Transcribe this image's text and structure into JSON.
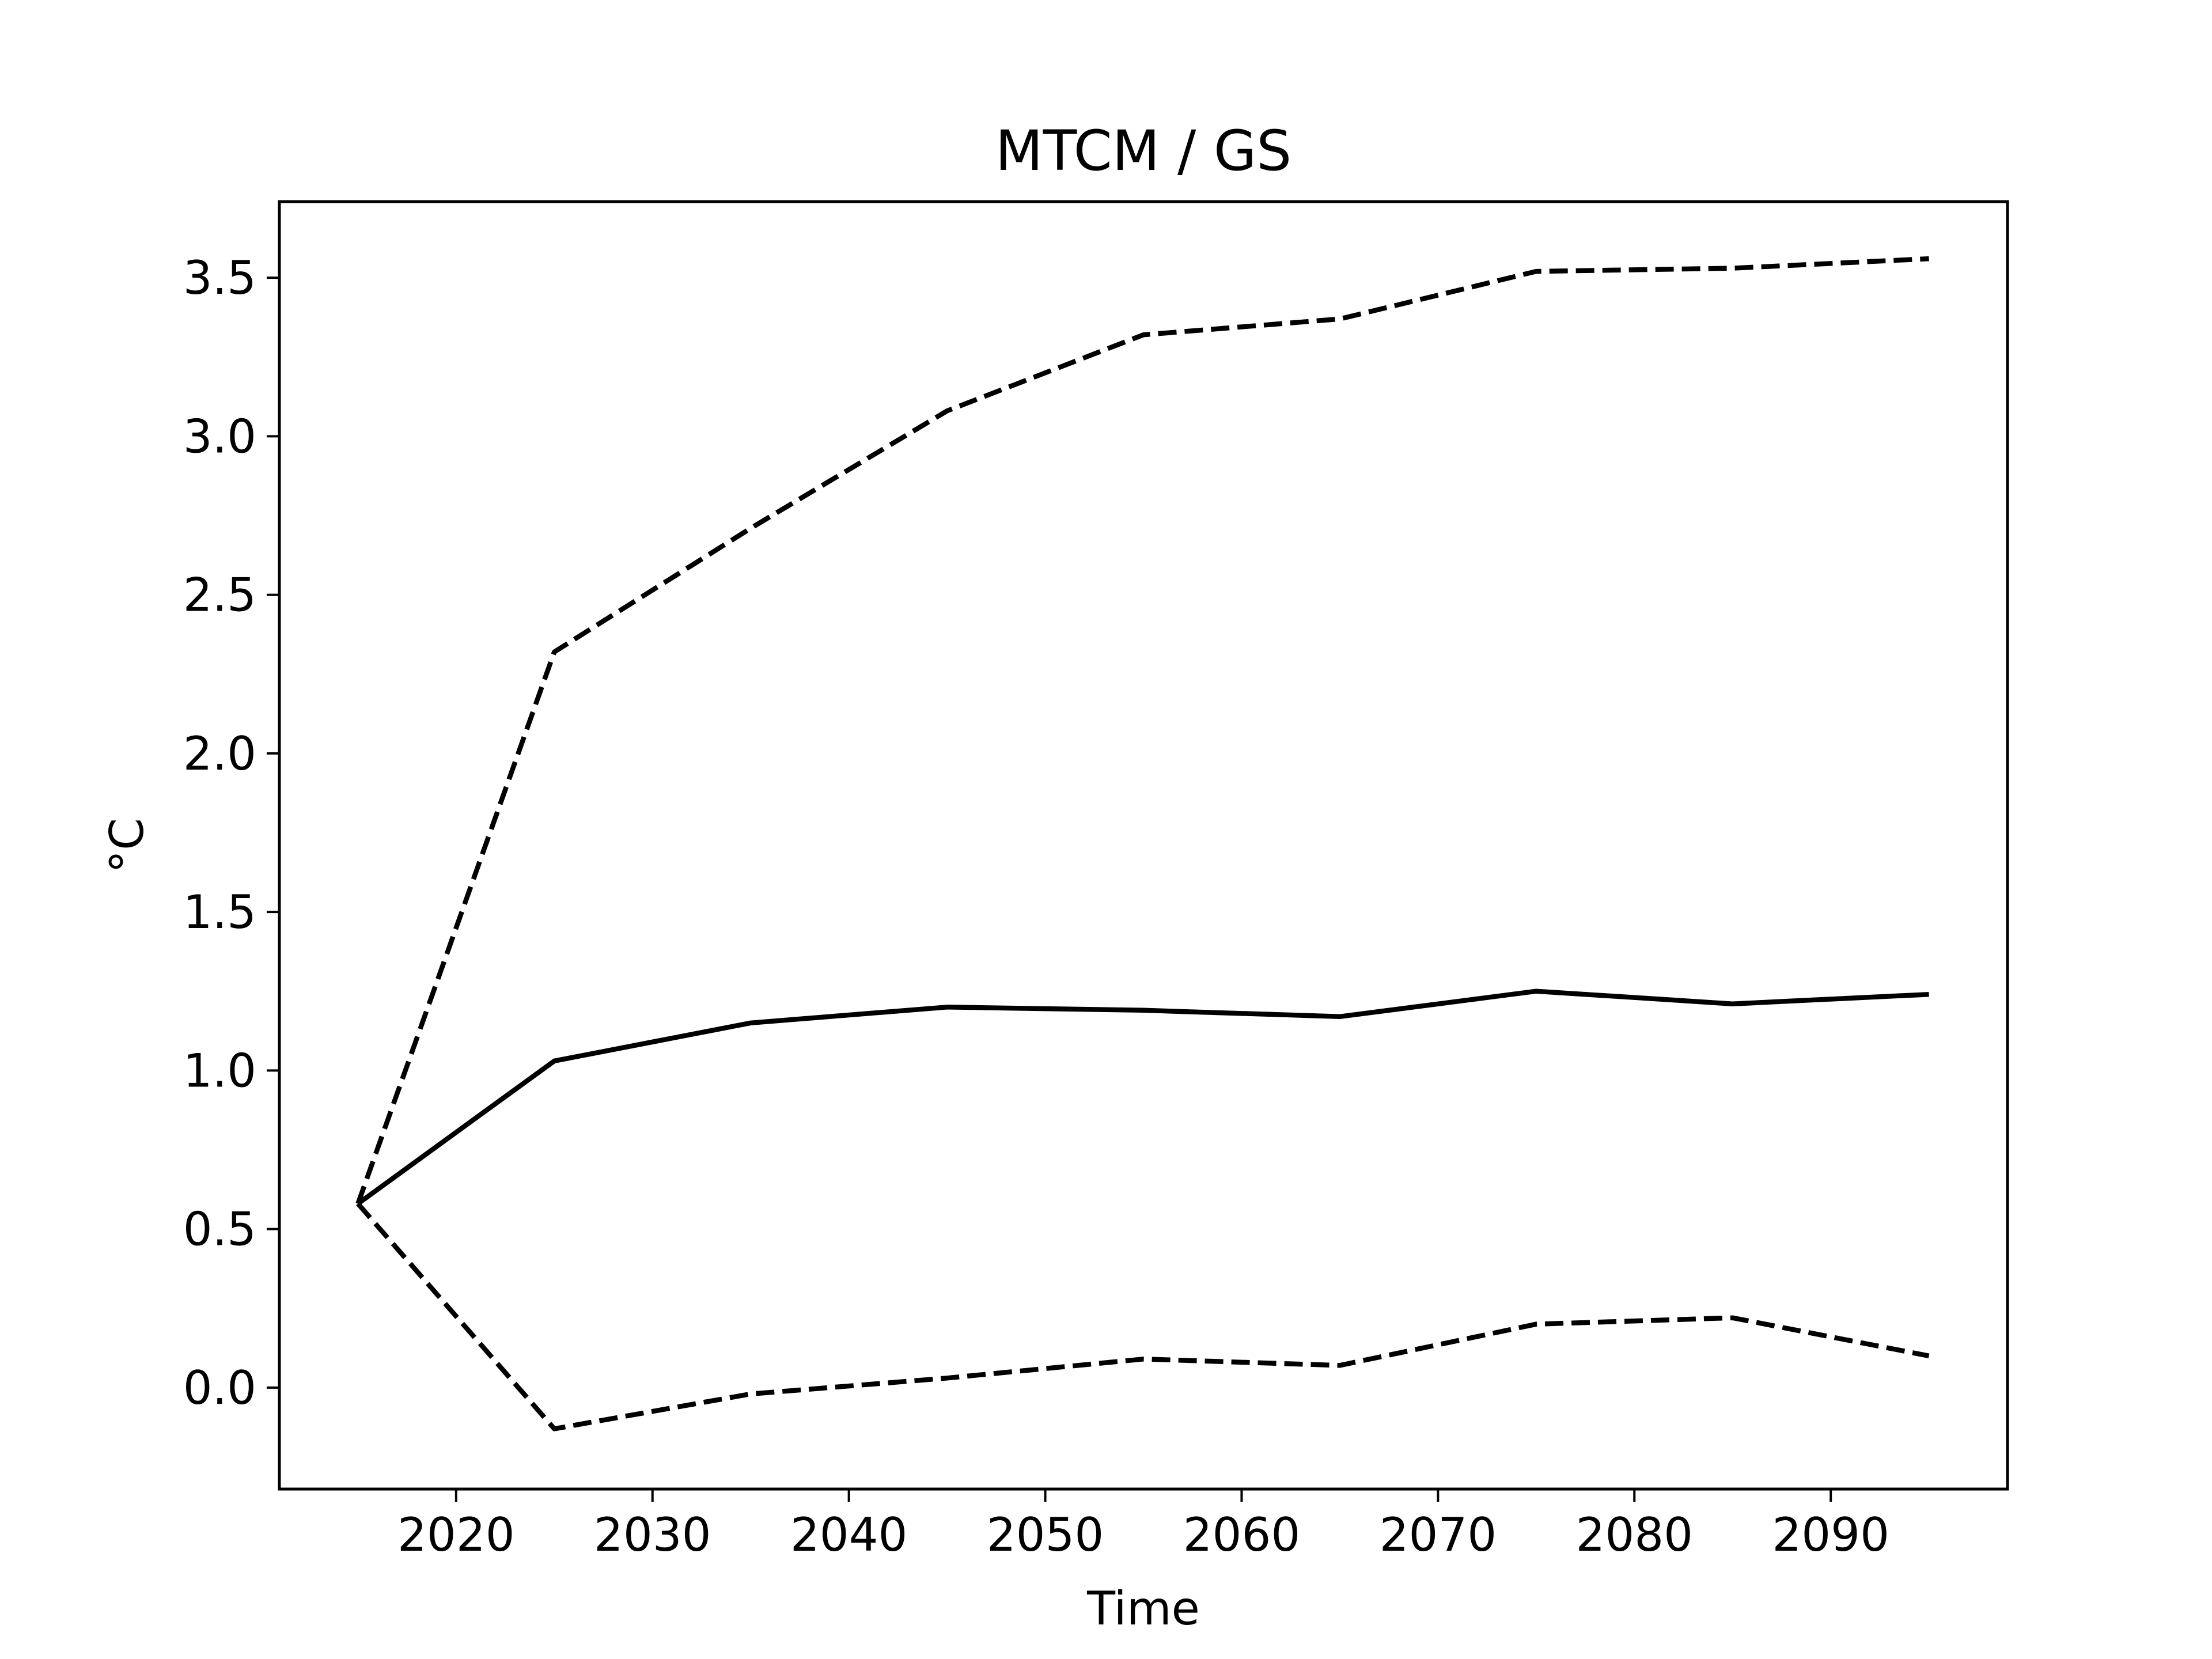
{
  "chart_data": {
    "type": "line",
    "title": "MTCM / GS",
    "xlabel": "Time",
    "ylabel": "°C",
    "xlim": [
      2011,
      2099
    ],
    "ylim": [
      -0.32,
      3.74
    ],
    "xticks": [
      2020,
      2030,
      2040,
      2050,
      2060,
      2070,
      2080,
      2090
    ],
    "yticks": [
      0.0,
      0.5,
      1.0,
      1.5,
      2.0,
      2.5,
      3.0,
      3.5
    ],
    "ytick_labels": [
      "0.0",
      "0.5",
      "1.0",
      "1.5",
      "2.0",
      "2.5",
      "3.0",
      "3.5"
    ],
    "grid": false,
    "x": [
      2015,
      2025,
      2035,
      2045,
      2055,
      2065,
      2075,
      2085,
      2095
    ],
    "series": [
      {
        "style": "solid",
        "color": "#000000",
        "values": [
          0.58,
          1.03,
          1.15,
          1.2,
          1.19,
          1.17,
          1.25,
          1.21,
          1.24
        ]
      },
      {
        "style": "dashed",
        "color": "#000000",
        "values": [
          0.58,
          2.32,
          2.71,
          3.08,
          3.32,
          3.37,
          3.52,
          3.53,
          3.56
        ]
      },
      {
        "style": "dashed",
        "color": "#000000",
        "values": [
          0.58,
          -0.13,
          -0.02,
          0.03,
          0.09,
          0.07,
          0.2,
          0.22,
          0.1
        ]
      }
    ]
  }
}
